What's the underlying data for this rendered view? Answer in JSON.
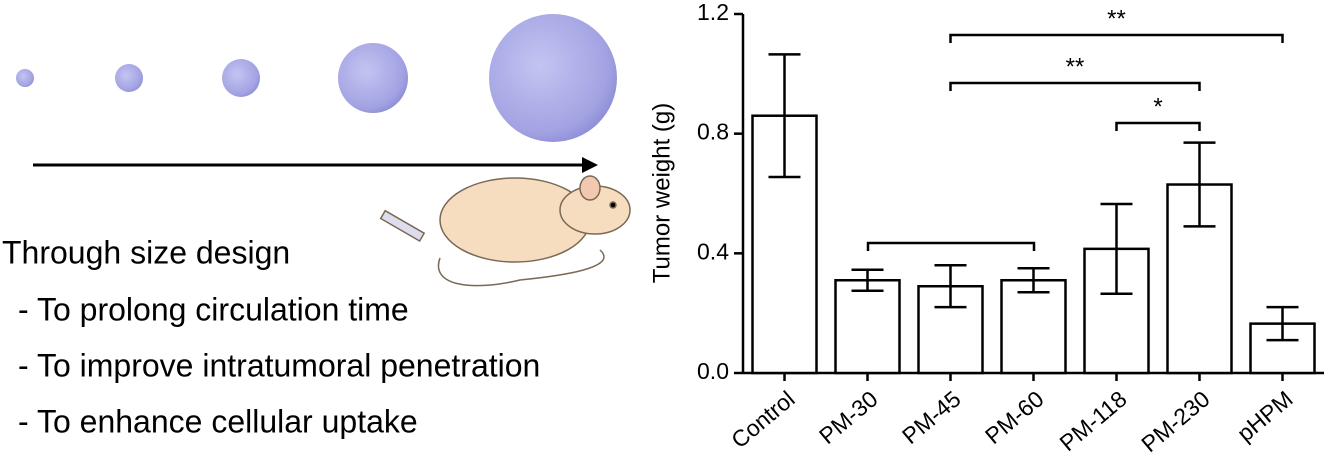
{
  "left_panel": {
    "heading": "Through size design",
    "items": [
      "- To prolong circulation time",
      "- To improve intratumoral penetration",
      "- To enhance cellular uptake"
    ]
  },
  "chart_data": {
    "type": "bar",
    "y_label": "Tumor weight (g)",
    "categories": [
      "Control",
      "PM-30",
      "PM-45",
      "PM-60",
      "PM-118",
      "PM-230",
      "pHPM"
    ],
    "values": [
      0.86,
      0.31,
      0.29,
      0.31,
      0.415,
      0.63,
      0.165
    ],
    "errors": [
      0.205,
      0.035,
      0.07,
      0.04,
      0.15,
      0.14,
      0.055
    ],
    "color": "#ffffff",
    "ylim": [
      0,
      1.2
    ],
    "yticks": [
      {
        "value": 0,
        "label": "0.0"
      },
      0.4,
      0.8,
      1.2
    ],
    "annotations": [
      {
        "label": "**"
      },
      {
        "label": "**"
      },
      {
        "label": "*"
      }
    ]
  }
}
